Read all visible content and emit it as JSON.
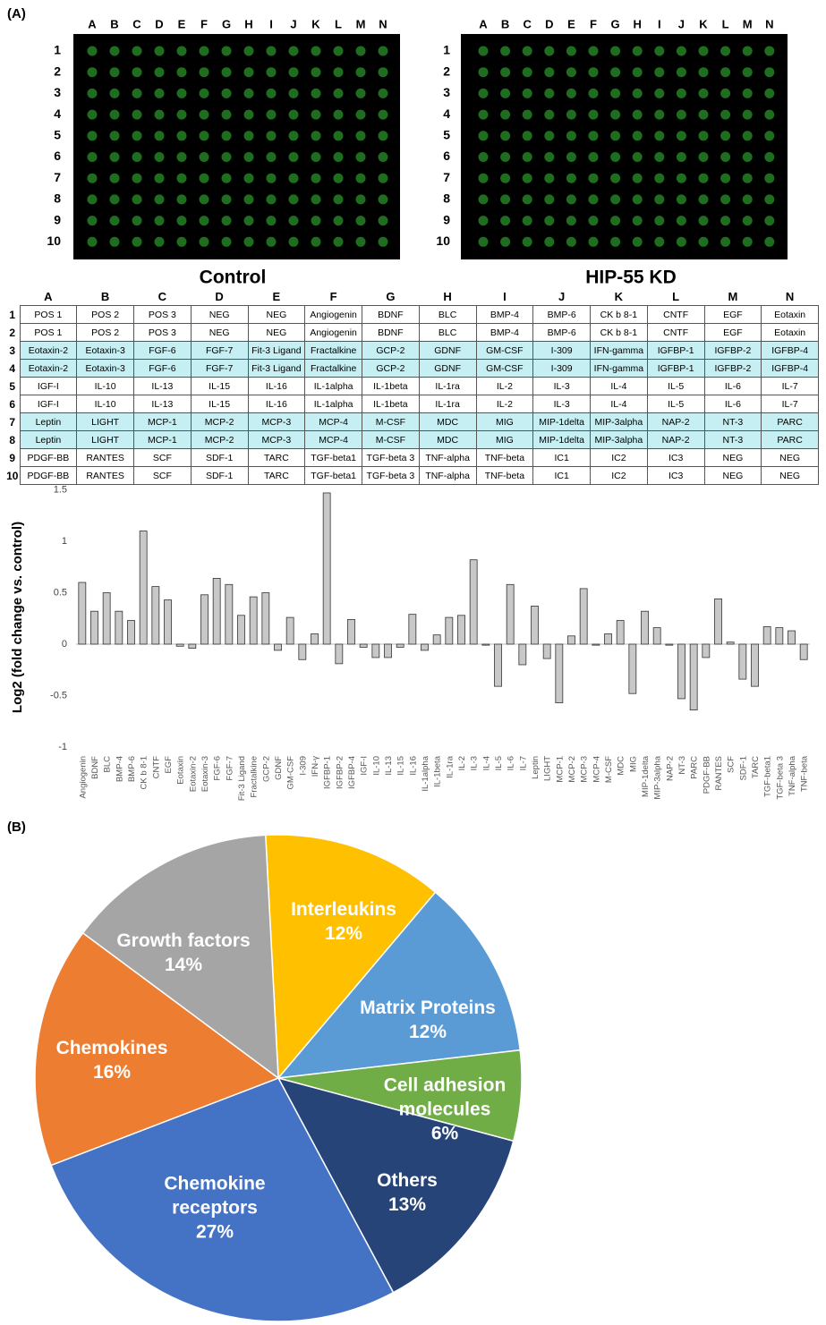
{
  "panel_a_label": "(A)",
  "panel_b_label": "(B)",
  "arrays": {
    "titles": [
      "Control",
      "HIP-55 KD"
    ]
  },
  "table": {
    "columns": [
      "A",
      "B",
      "C",
      "D",
      "E",
      "F",
      "G",
      "H",
      "I",
      "J",
      "K",
      "L",
      "M",
      "N"
    ],
    "row_labels": [
      "1",
      "2",
      "3",
      "4",
      "5",
      "6",
      "7",
      "8",
      "9",
      "10"
    ],
    "rows": [
      [
        "POS 1",
        "POS 2",
        "POS 3",
        "NEG",
        "NEG",
        "Angiogenin",
        "BDNF",
        "BLC",
        "BMP-4",
        "BMP-6",
        "CK b 8-1",
        "CNTF",
        "EGF",
        "Eotaxin"
      ],
      [
        "POS 1",
        "POS 2",
        "POS 3",
        "NEG",
        "NEG",
        "Angiogenin",
        "BDNF",
        "BLC",
        "BMP-4",
        "BMP-6",
        "CK b 8-1",
        "CNTF",
        "EGF",
        "Eotaxin"
      ],
      [
        "Eotaxin-2",
        "Eotaxin-3",
        "FGF-6",
        "FGF-7",
        "Fit-3 Ligand",
        "Fractalkine",
        "GCP-2",
        "GDNF",
        "GM-CSF",
        "I-309",
        "IFN-gamma",
        "IGFBP-1",
        "IGFBP-2",
        "IGFBP-4"
      ],
      [
        "Eotaxin-2",
        "Eotaxin-3",
        "FGF-6",
        "FGF-7",
        "Fit-3 Ligand",
        "Fractalkine",
        "GCP-2",
        "GDNF",
        "GM-CSF",
        "I-309",
        "IFN-gamma",
        "IGFBP-1",
        "IGFBP-2",
        "IGFBP-4"
      ],
      [
        "IGF-I",
        "IL-10",
        "IL-13",
        "IL-15",
        "IL-16",
        "IL-1alpha",
        "IL-1beta",
        "IL-1ra",
        "IL-2",
        "IL-3",
        "IL-4",
        "IL-5",
        "IL-6",
        "IL-7"
      ],
      [
        "IGF-I",
        "IL-10",
        "IL-13",
        "IL-15",
        "IL-16",
        "IL-1alpha",
        "IL-1beta",
        "IL-1ra",
        "IL-2",
        "IL-3",
        "IL-4",
        "IL-5",
        "IL-6",
        "IL-7"
      ],
      [
        "Leptin",
        "LIGHT",
        "MCP-1",
        "MCP-2",
        "MCP-3",
        "MCP-4",
        "M-CSF",
        "MDC",
        "MIG",
        "MIP-1delta",
        "MIP-3alpha",
        "NAP-2",
        "NT-3",
        "PARC"
      ],
      [
        "Leptin",
        "LIGHT",
        "MCP-1",
        "MCP-2",
        "MCP-3",
        "MCP-4",
        "M-CSF",
        "MDC",
        "MIG",
        "MIP-1delta",
        "MIP-3alpha",
        "NAP-2",
        "NT-3",
        "PARC"
      ],
      [
        "PDGF-BB",
        "RANTES",
        "SCF",
        "SDF-1",
        "TARC",
        "TGF-beta1",
        "TGF-beta 3",
        "TNF-alpha",
        "TNF-beta",
        "IC1",
        "IC2",
        "IC3",
        "NEG",
        "NEG"
      ],
      [
        "PDGF-BB",
        "RANTES",
        "SCF",
        "SDF-1",
        "TARC",
        "TGF-beta1",
        "TGF-beta 3",
        "TNF-alpha",
        "TNF-beta",
        "IC1",
        "IC2",
        "IC3",
        "NEG",
        "NEG"
      ]
    ]
  },
  "chart_data": [
    {
      "type": "bar",
      "y_label": "Log2 (fold change vs. control)",
      "categories": [
        "Angiogenin",
        "BDNF",
        "BLC",
        "BMP-4",
        "BMP-6",
        "CK b 8-1",
        "CNTF",
        "EGF",
        "Eotaxin",
        "Eotaxin-2",
        "Eotaxin-3",
        "FGF-6",
        "FGF-7",
        "Fit-3 Ligand",
        "Fractalkine",
        "GCP-2",
        "GDNF",
        "GM-CSF",
        "I-309",
        "IFN-γ",
        "IGFBP-1",
        "IGFBP-2",
        "IGFBP-4",
        "IGF-I",
        "IL-10",
        "IL-13",
        "IL-15",
        "IL-16",
        "IL-1alpha",
        "IL-1beta",
        "IL-1ra",
        "IL-2",
        "IL-3",
        "IL-4",
        "IL-5",
        "IL-6",
        "IL-7",
        "Leptin",
        "LIGHT",
        "MCP-1",
        "MCP-2",
        "MCP-3",
        "MCP-4",
        "M-CSF",
        "MDC",
        "MIG",
        "MIP-1delta",
        "MIP-3alpha",
        "NAP-2",
        "NT-3",
        "PARC",
        "PDGF-BB",
        "RANTES",
        "SCF",
        "SDF-1",
        "TARC",
        "TGF-beta1",
        "TGF-beta 3",
        "TNF-alpha",
        "TNF-beta"
      ],
      "values": [
        0.6,
        0.32,
        0.5,
        0.32,
        0.23,
        1.1,
        0.56,
        0.43,
        -0.02,
        -0.04,
        0.48,
        0.64,
        0.58,
        0.28,
        0.46,
        0.5,
        -0.06,
        0.26,
        -0.15,
        0.1,
        1.47,
        -0.19,
        0.24,
        -0.03,
        -0.13,
        -0.13,
        -0.03,
        0.29,
        -0.06,
        0.09,
        0.26,
        0.28,
        0.82,
        -0.01,
        -0.41,
        0.58,
        -0.2,
        0.37,
        -0.14,
        -0.57,
        0.08,
        0.54,
        -0.01,
        0.1,
        0.23,
        -0.48,
        0.32,
        0.16,
        -0.01,
        -0.53,
        -0.64,
        -0.13,
        0.44,
        0.02,
        -0.34,
        -0.41,
        0.17,
        0.16,
        0.13,
        -0.15
      ],
      "color": "#c8c8c8",
      "ylim": [
        -1,
        1.5
      ],
      "yticks": [
        1.5,
        1,
        0.5,
        0,
        -0.5,
        -1
      ]
    },
    {
      "type": "pie",
      "categories": [
        "Interleukins",
        "Matrix Proteins",
        "Cell adhesion molecules",
        "Others",
        "Chemokine receptors",
        "Chemokines",
        "Growth factors"
      ],
      "values": [
        12,
        12,
        6,
        13,
        27,
        16,
        14
      ],
      "value_labels": [
        "12%",
        "12%",
        "6%",
        "13%",
        "27%",
        "16%",
        "14%"
      ],
      "colors": [
        "#ffc000",
        "#5b9bd5",
        "#70ad47",
        "#264478",
        "#4472c4",
        "#ed7d31",
        "#a5a5a5"
      ]
    }
  ]
}
